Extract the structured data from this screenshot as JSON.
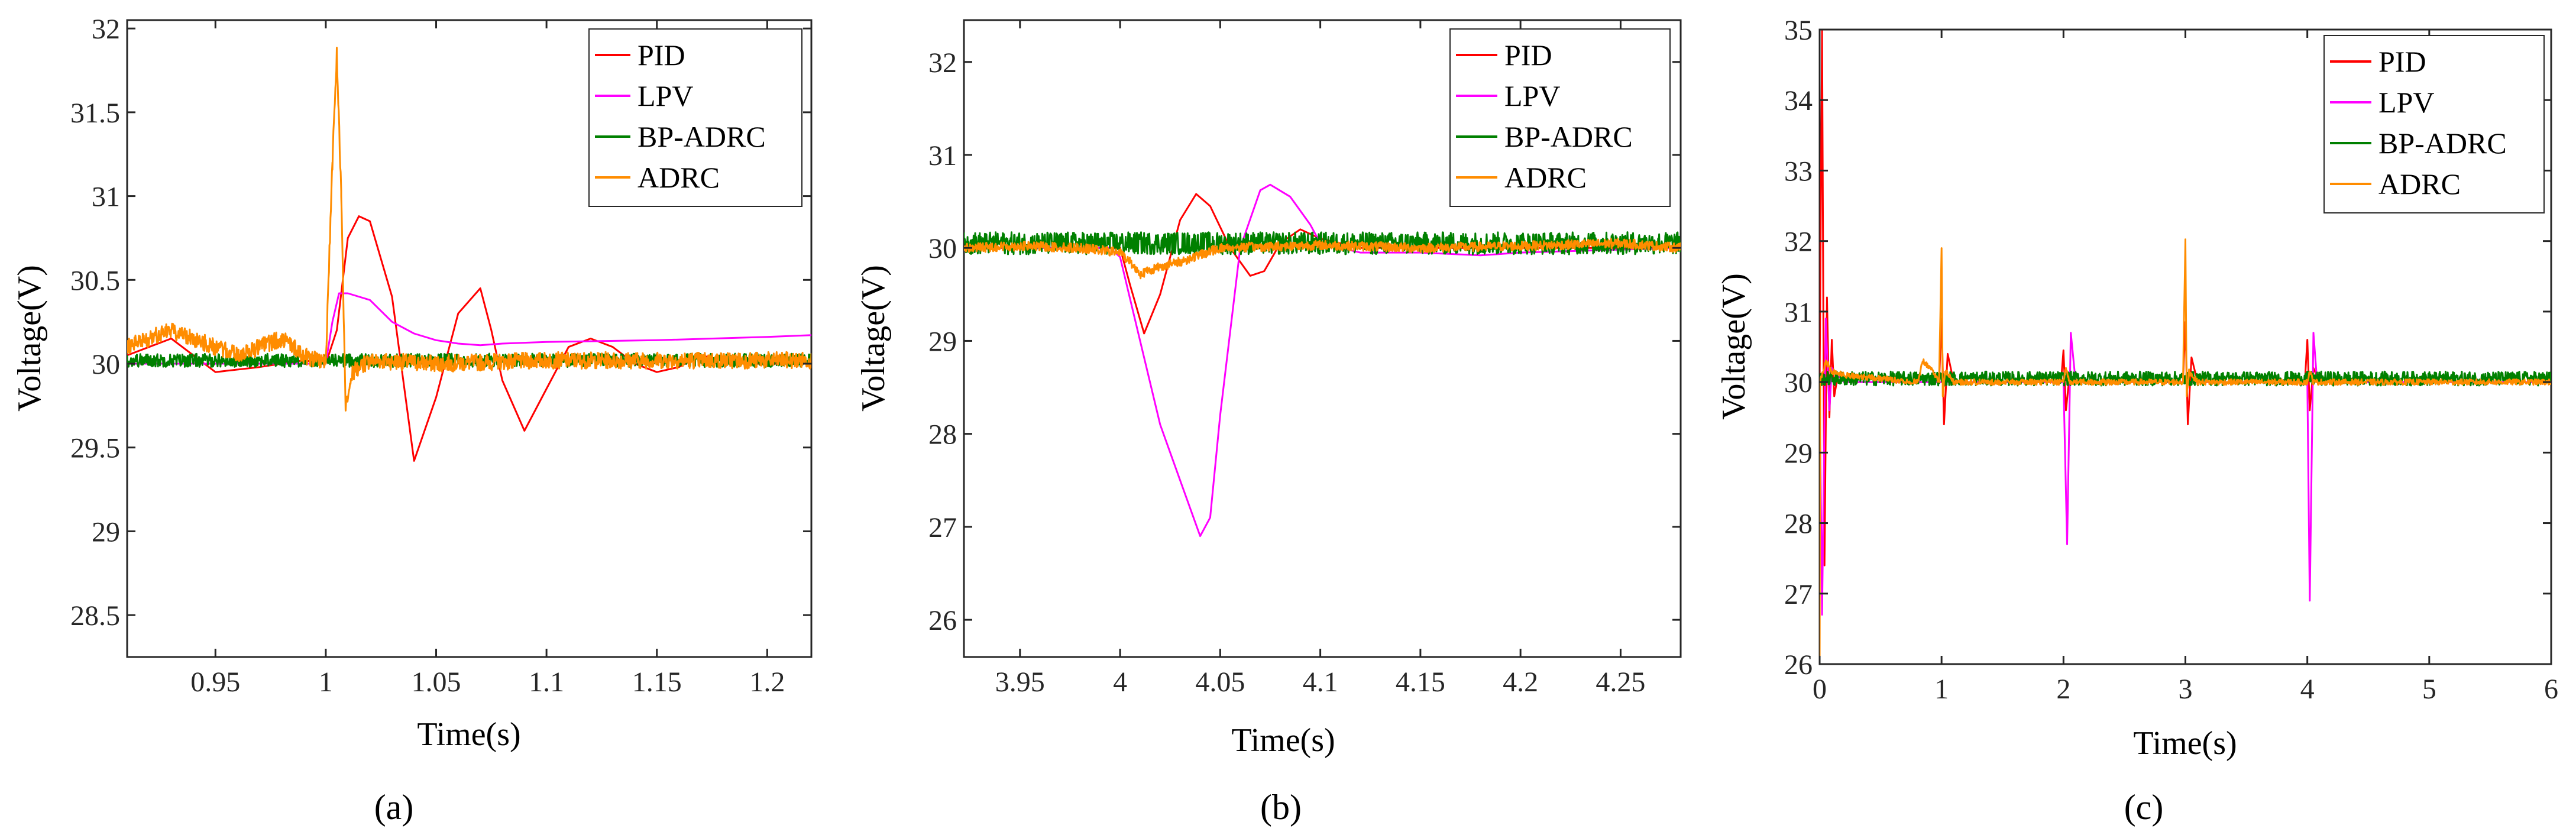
{
  "figure": {
    "panel_labels": [
      "(a)",
      "(b)",
      "(c)"
    ]
  },
  "series_colors": {
    "PID": "#ff0000",
    "LPV": "#ff00ff",
    "BP-ADRC": "#008000",
    "ADRC": "#ff8c00"
  },
  "chart_data": [
    {
      "type": "line",
      "panel": "(a)",
      "xlabel": "Time(s)",
      "ylabel": "Voltage(V)",
      "xlim": [
        0.91,
        1.22
      ],
      "ylim": [
        28.25,
        32.05
      ],
      "xticks": [
        0.95,
        1,
        1.05,
        1.1,
        1.15,
        1.2
      ],
      "xtick_labels": [
        "0.95",
        "1",
        "1.05",
        "1.1",
        "1.15",
        "1.2"
      ],
      "yticks": [
        28.5,
        29,
        29.5,
        30,
        30.5,
        31,
        31.5,
        32
      ],
      "ytick_labels": [
        "28.5",
        "29",
        "29.5",
        "30",
        "30.5",
        "31",
        "31.5",
        "32"
      ],
      "legend": [
        "PID",
        "LPV",
        "BP-ADRC",
        "ADRC"
      ],
      "legend_position": "top-right",
      "series": [
        {
          "name": "PID",
          "x": [
            0.91,
            0.93,
            0.95,
            0.97,
            0.99,
            1.0,
            1.005,
            1.01,
            1.015,
            1.02,
            1.03,
            1.04,
            1.05,
            1.06,
            1.07,
            1.075,
            1.08,
            1.09,
            1.1,
            1.11,
            1.12,
            1.13,
            1.14,
            1.15,
            1.16,
            1.17,
            1.18,
            1.19,
            1.2,
            1.22
          ],
          "y": [
            30.05,
            30.15,
            29.95,
            29.98,
            30.02,
            30.0,
            30.2,
            30.75,
            30.88,
            30.85,
            30.4,
            29.42,
            29.8,
            30.3,
            30.45,
            30.2,
            29.9,
            29.6,
            29.85,
            30.1,
            30.15,
            30.1,
            30.0,
            29.95,
            29.98,
            30.05,
            30.02,
            30.0,
            30.0,
            30.0
          ]
        },
        {
          "name": "LPV",
          "x": [
            0.91,
            0.95,
            1.0,
            1.003,
            1.006,
            1.01,
            1.02,
            1.03,
            1.04,
            1.05,
            1.06,
            1.07,
            1.08,
            1.1,
            1.15,
            1.2,
            1.22
          ],
          "y": [
            30.0,
            30.0,
            30.0,
            30.25,
            30.42,
            30.42,
            30.38,
            30.25,
            30.18,
            30.14,
            30.12,
            30.11,
            30.12,
            30.13,
            30.14,
            30.16,
            30.17
          ]
        },
        {
          "name": "BP-ADRC",
          "x": [
            0.91,
            1.22
          ],
          "y": [
            30.02,
            30.02
          ],
          "noise": 0.04
        },
        {
          "name": "ADRC",
          "x": [
            0.91,
            0.92,
            0.93,
            0.94,
            0.95,
            0.96,
            0.97,
            0.98,
            0.99,
            1.0,
            1.003,
            1.005,
            1.007,
            1.009,
            1.012,
            1.02,
            1.05,
            1.1,
            1.15,
            1.2,
            1.22
          ],
          "y": [
            30.1,
            30.15,
            30.2,
            30.15,
            30.1,
            30.05,
            30.1,
            30.15,
            30.05,
            30.0,
            31.2,
            31.85,
            31.0,
            29.72,
            29.95,
            30.02,
            30.0,
            30.02,
            30.02,
            30.02,
            30.02
          ],
          "noise": 0.05
        }
      ]
    },
    {
      "type": "line",
      "panel": "(b)",
      "xlabel": "Time(s)",
      "ylabel": "Voltage(V)",
      "xlim": [
        3.922,
        4.28
      ],
      "ylim": [
        25.6,
        32.45
      ],
      "xticks": [
        3.95,
        4,
        4.05,
        4.1,
        4.15,
        4.2,
        4.25
      ],
      "xtick_labels": [
        "3.95",
        "4",
        "4.05",
        "4.1",
        "4.15",
        "4.2",
        "4.25"
      ],
      "yticks": [
        26,
        27,
        28,
        29,
        30,
        31,
        32
      ],
      "ytick_labels": [
        "26",
        "27",
        "28",
        "29",
        "30",
        "31",
        "32"
      ],
      "legend": [
        "PID",
        "LPV",
        "BP-ADRC",
        "ADRC"
      ],
      "legend_position": "top-right",
      "series": [
        {
          "name": "PID",
          "x": [
            3.922,
            3.99,
            4.0,
            4.005,
            4.012,
            4.02,
            4.03,
            4.038,
            4.045,
            4.055,
            4.065,
            4.072,
            4.08,
            4.09,
            4.1,
            4.12,
            4.15,
            4.2,
            4.28
          ],
          "y": [
            30.0,
            30.0,
            30.0,
            29.6,
            29.08,
            29.5,
            30.3,
            30.58,
            30.45,
            30.0,
            29.7,
            29.75,
            30.05,
            30.2,
            30.1,
            30.0,
            30.0,
            30.0,
            30.0
          ]
        },
        {
          "name": "LPV",
          "x": [
            3.922,
            3.995,
            4.0,
            4.01,
            4.02,
            4.03,
            4.04,
            4.045,
            4.05,
            4.06,
            4.07,
            4.075,
            4.085,
            4.095,
            4.1,
            4.12,
            4.15,
            4.18,
            4.2,
            4.28
          ],
          "y": [
            30.0,
            30.0,
            29.9,
            29.0,
            28.1,
            27.5,
            26.9,
            27.1,
            28.2,
            30.0,
            30.62,
            30.68,
            30.55,
            30.25,
            30.05,
            29.95,
            29.95,
            29.92,
            29.95,
            30.0
          ]
        },
        {
          "name": "BP-ADRC",
          "x": [
            3.922,
            4.28
          ],
          "y": [
            30.05,
            30.05
          ],
          "noise": 0.12
        },
        {
          "name": "ADRC",
          "x": [
            3.922,
            3.95,
            3.98,
            4.0,
            4.005,
            4.01,
            4.02,
            4.03,
            4.05,
            4.1,
            4.15,
            4.2,
            4.25,
            4.28
          ],
          "y": [
            30.0,
            30.02,
            30.0,
            29.95,
            29.85,
            29.72,
            29.8,
            29.85,
            30.0,
            30.03,
            30.0,
            30.02,
            30.05,
            30.0
          ],
          "noise": 0.05
        }
      ]
    },
    {
      "type": "line",
      "panel": "(c)",
      "xlabel": "Time(s)",
      "ylabel": "Voltage(V)",
      "xlim": [
        0,
        6
      ],
      "ylim": [
        26,
        35
      ],
      "xticks": [
        0,
        1,
        2,
        3,
        4,
        5,
        6
      ],
      "xtick_labels": [
        "0",
        "1",
        "2",
        "3",
        "4",
        "5",
        "6"
      ],
      "yticks": [
        26,
        27,
        28,
        29,
        30,
        31,
        32,
        33,
        34,
        35
      ],
      "ytick_labels": [
        "26",
        "27",
        "28",
        "29",
        "30",
        "31",
        "32",
        "33",
        "34",
        "35"
      ],
      "legend": [
        "PID",
        "LPV",
        "BP-ADRC",
        "ADRC"
      ],
      "legend_position": "top-right",
      "series": [
        {
          "name": "PID",
          "x": [
            0,
            0.02,
            0.04,
            0.06,
            0.08,
            0.1,
            0.12,
            0.15,
            0.2,
            0.3,
            0.98,
            1.0,
            1.02,
            1.05,
            1.1,
            1.2,
            1.98,
            2.0,
            2.02,
            2.05,
            2.1,
            2.98,
            3.0,
            3.02,
            3.05,
            3.1,
            3.98,
            4.0,
            4.02,
            4.05,
            4.1,
            6
          ],
          "y": [
            30.0,
            35.0,
            27.4,
            31.2,
            29.5,
            30.6,
            29.8,
            30.1,
            30.0,
            30.0,
            30.0,
            30.9,
            29.4,
            30.4,
            30.0,
            30.0,
            30.0,
            30.45,
            29.6,
            30.1,
            30.0,
            30.0,
            30.85,
            29.4,
            30.35,
            30.0,
            30.0,
            30.6,
            29.6,
            30.2,
            30.0,
            30.0
          ]
        },
        {
          "name": "LPV",
          "x": [
            0,
            0.02,
            0.05,
            0.08,
            0.1,
            0.2,
            0.3,
            2.0,
            2.03,
            2.06,
            2.1,
            2.15,
            4.0,
            4.02,
            4.05,
            4.08,
            4.12,
            6
          ],
          "y": [
            30.0,
            26.7,
            30.9,
            29.6,
            30.2,
            30.0,
            30.0,
            30.0,
            27.7,
            30.7,
            30.0,
            30.0,
            30.0,
            26.9,
            30.7,
            30.0,
            30.0,
            30.0
          ]
        },
        {
          "name": "BP-ADRC",
          "x": [
            0,
            6
          ],
          "y": [
            30.05,
            30.05
          ],
          "noise": 0.1
        },
        {
          "name": "ADRC",
          "x": [
            0,
            0.005,
            0.02,
            0.05,
            0.1,
            0.2,
            0.5,
            0.8,
            0.85,
            0.9,
            0.95,
            0.98,
            1.0,
            1.01,
            1.03,
            1.1,
            2.0,
            2.02,
            2.05,
            2.98,
            3.0,
            3.01,
            3.03,
            3.1,
            4.0,
            4.02,
            4.05,
            6
          ],
          "y": [
            26.0,
            30.0,
            30.1,
            30.3,
            30.15,
            30.1,
            30.05,
            30.0,
            30.3,
            30.2,
            30.1,
            30.0,
            31.9,
            29.8,
            30.15,
            30.0,
            30.0,
            30.2,
            30.0,
            30.0,
            32.0,
            29.8,
            30.15,
            30.0,
            30.0,
            30.15,
            30.0,
            30.0
          ],
          "noise": 0.04
        }
      ]
    }
  ]
}
